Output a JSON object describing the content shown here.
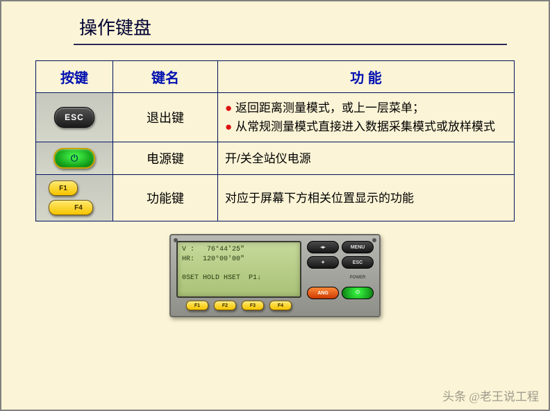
{
  "title": "操作键盘",
  "table": {
    "headers": {
      "key": "按键",
      "name": "键名",
      "func": "功 能"
    },
    "rows": [
      {
        "key_label": "ESC",
        "key_style": "dark",
        "name": "退出键",
        "func_items": [
          "返回距离测量模式，或上一层菜单；",
          "从常规测量模式直接进入数据采集模式或放样模式"
        ]
      },
      {
        "key_label": "⏻",
        "key_style": "green",
        "name": "电源键",
        "func_plain": "开/关全站仪电源"
      },
      {
        "key_labels": [
          "F1",
          "F4"
        ],
        "key_style": "yel-pair",
        "name": "功能键",
        "func_plain": "对应于屏幕下方相关位置显示的功能"
      }
    ]
  },
  "panel": {
    "lcd_lines": "V :   76°44'25\"\nHR:  120°00'00\"\n\n0SET HOLD HSET  P1↓",
    "fkeys": [
      "F1",
      "F2",
      "F3",
      "F4"
    ],
    "right_buttons": {
      "r0a": "◂▸",
      "r0b": "MENU",
      "r1a": "✦",
      "r1b": "ESC",
      "r2a": "ANG",
      "r2b": "⏻",
      "lab_a": "",
      "lab_b": "POWER"
    }
  },
  "colors": {
    "page_bg": "#fbf4d6",
    "border": "#001060",
    "header_text": "#0010b0",
    "bullet": "#d11"
  },
  "watermark": "头条 @老王说工程"
}
